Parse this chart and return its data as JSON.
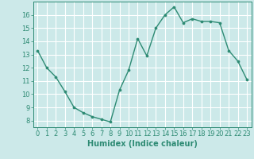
{
  "x": [
    0,
    1,
    2,
    3,
    4,
    5,
    6,
    7,
    8,
    9,
    10,
    11,
    12,
    13,
    14,
    15,
    16,
    17,
    18,
    19,
    20,
    21,
    22,
    23
  ],
  "y": [
    13.3,
    12.0,
    11.3,
    10.2,
    9.0,
    8.6,
    8.3,
    8.1,
    7.9,
    10.3,
    11.8,
    14.2,
    12.9,
    15.0,
    16.0,
    16.6,
    15.4,
    15.7,
    15.5,
    15.5,
    15.4,
    13.3,
    12.5,
    11.1
  ],
  "line_color": "#2e8b74",
  "marker": "o",
  "markersize": 2.2,
  "linewidth": 1.0,
  "xlabel": "Humidex (Indice chaleur)",
  "xlim": [
    -0.5,
    23.5
  ],
  "ylim": [
    7.5,
    17.0
  ],
  "yticks": [
    8,
    9,
    10,
    11,
    12,
    13,
    14,
    15,
    16
  ],
  "xticks": [
    0,
    1,
    2,
    3,
    4,
    5,
    6,
    7,
    8,
    9,
    10,
    11,
    12,
    13,
    14,
    15,
    16,
    17,
    18,
    19,
    20,
    21,
    22,
    23
  ],
  "bg_color": "#cce9e9",
  "grid_color": "#ffffff",
  "font_color": "#2e8b74",
  "xlabel_fontsize": 7,
  "tick_fontsize": 6
}
